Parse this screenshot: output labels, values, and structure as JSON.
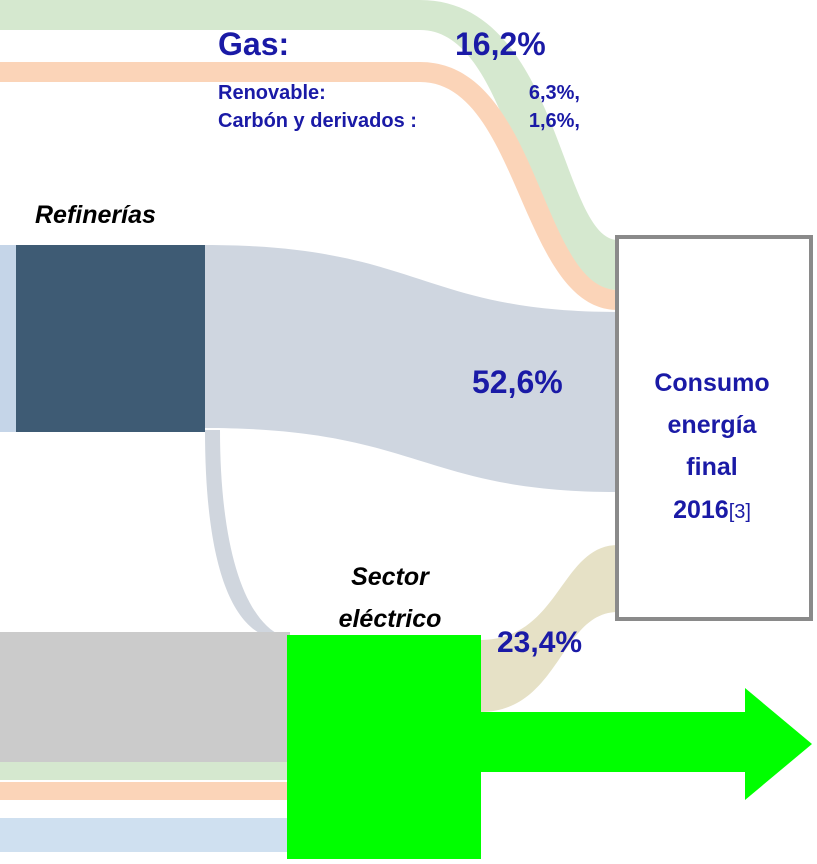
{
  "header": {
    "gas_label": "Gas:",
    "gas_value": "16,2%",
    "renewable_label": "Renovable:",
    "renewable_value": "6,3%,",
    "coal_label": "Carbón y derivados :",
    "coal_value": "1,6%,"
  },
  "nodes": [
    {
      "label": "Refinerías",
      "value": "52,6%"
    },
    {
      "label_lines": [
        "Consumo",
        "energía",
        "final",
        "2016"
      ],
      "note": "[3]"
    },
    {
      "label_lines": [
        "Sector",
        "eléctrico"
      ],
      "value": "23,4%"
    }
  ]
}
